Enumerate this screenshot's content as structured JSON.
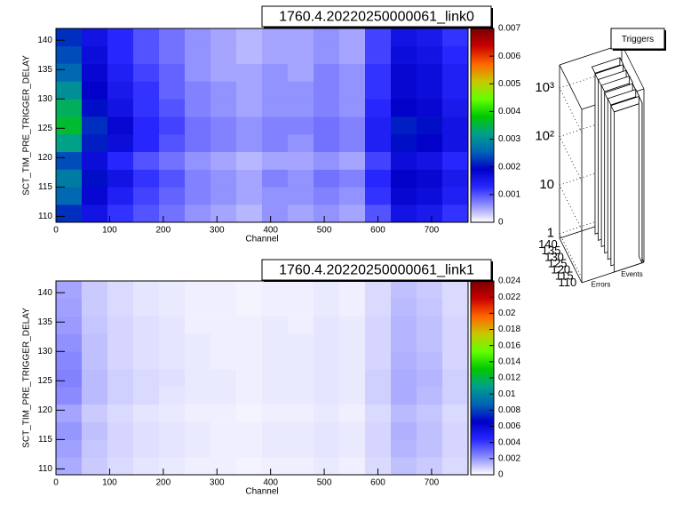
{
  "chart_data": [
    {
      "type": "heatmap",
      "title": "1760.4.20220250000061_link0",
      "xlabel": "Channel",
      "ylabel": "SCT_TIM_PRE_TRIGGER_DELAY",
      "xlim": [
        0,
        768
      ],
      "xticks": [
        0,
        100,
        200,
        300,
        400,
        500,
        600,
        700
      ],
      "ylim": [
        109,
        142
      ],
      "yticks": [
        110,
        115,
        120,
        125,
        130,
        135,
        140
      ],
      "xbins": [
        0,
        48,
        96,
        144,
        192,
        240,
        288,
        336,
        384,
        432,
        480,
        528,
        576,
        624,
        672,
        720,
        768
      ],
      "ybins": [
        109,
        112,
        115,
        118,
        121,
        124,
        127,
        130,
        133,
        136,
        139,
        142
      ],
      "zlim": [
        0,
        0.007
      ],
      "zticks": [
        0,
        0.001,
        0.002,
        0.003,
        0.004,
        0.005,
        0.006,
        0.007
      ],
      "palette": [
        "#ffffff",
        "#8c8cff",
        "#2828ff",
        "#0000c8",
        "#0064b4",
        "#00a08c",
        "#00c800",
        "#64ff00",
        "#c8c800",
        "#ff6400",
        "#c80000",
        "#780000"
      ],
      "z": [
        [
          0.0022,
          0.0016,
          0.0012,
          0.001,
          0.0008,
          0.0006,
          0.0005,
          0.0004,
          0.0006,
          0.0005,
          0.0006,
          0.0005,
          0.001,
          0.0016,
          0.0015,
          0.0012
        ],
        [
          0.0026,
          0.0018,
          0.0014,
          0.0011,
          0.0009,
          0.0007,
          0.0006,
          0.0005,
          0.0006,
          0.0006,
          0.0007,
          0.0006,
          0.0012,
          0.0018,
          0.0017,
          0.0014
        ],
        [
          0.0028,
          0.002,
          0.0016,
          0.0012,
          0.001,
          0.0007,
          0.0006,
          0.0005,
          0.0007,
          0.0006,
          0.0008,
          0.0007,
          0.0013,
          0.0019,
          0.0018,
          0.0015
        ],
        [
          0.0024,
          0.0017,
          0.0013,
          0.001,
          0.0008,
          0.0006,
          0.0005,
          0.0004,
          0.0005,
          0.0005,
          0.0006,
          0.0005,
          0.0011,
          0.0017,
          0.0016,
          0.0013
        ],
        [
          0.0032,
          0.0021,
          0.0017,
          0.0013,
          0.001,
          0.0008,
          0.0007,
          0.0006,
          0.0007,
          0.0006,
          0.0008,
          0.0007,
          0.0014,
          0.002,
          0.0019,
          0.0016
        ],
        [
          0.0036,
          0.0022,
          0.0018,
          0.0013,
          0.0011,
          0.0008,
          0.0007,
          0.0006,
          0.0007,
          0.0007,
          0.0008,
          0.0007,
          0.0014,
          0.0021,
          0.002,
          0.0016
        ],
        [
          0.0034,
          0.002,
          0.0016,
          0.0012,
          0.001,
          0.0007,
          0.0006,
          0.0005,
          0.0006,
          0.0006,
          0.0007,
          0.0006,
          0.0013,
          0.0019,
          0.0018,
          0.0015
        ],
        [
          0.003,
          0.0019,
          0.0015,
          0.0012,
          0.0009,
          0.0007,
          0.0006,
          0.0005,
          0.0006,
          0.0006,
          0.0007,
          0.0006,
          0.0012,
          0.0018,
          0.0017,
          0.0014
        ],
        [
          0.0026,
          0.0018,
          0.0014,
          0.0011,
          0.0009,
          0.0006,
          0.0005,
          0.0005,
          0.0006,
          0.0005,
          0.0007,
          0.0006,
          0.0012,
          0.0018,
          0.0017,
          0.0014
        ],
        [
          0.0024,
          0.0017,
          0.0013,
          0.001,
          0.0008,
          0.0006,
          0.0005,
          0.0004,
          0.0005,
          0.0005,
          0.0006,
          0.0005,
          0.0011,
          0.0017,
          0.0016,
          0.0013
        ],
        [
          0.0022,
          0.0016,
          0.0013,
          0.001,
          0.0008,
          0.0006,
          0.0005,
          0.0004,
          0.0005,
          0.0005,
          0.0006,
          0.0005,
          0.0011,
          0.0016,
          0.0015,
          0.0012
        ]
      ]
    },
    {
      "type": "heatmap",
      "title": "1760.4.20220250000061_link1",
      "xlabel": "Channel",
      "ylabel": "SCT_TIM_PRE_TRIGGER_DELAY",
      "xlim": [
        0,
        768
      ],
      "xticks": [
        0,
        100,
        200,
        300,
        400,
        500,
        600,
        700
      ],
      "ylim": [
        109,
        142
      ],
      "yticks": [
        110,
        115,
        120,
        125,
        130,
        135,
        140
      ],
      "xbins": [
        0,
        48,
        96,
        144,
        192,
        240,
        288,
        336,
        384,
        432,
        480,
        528,
        576,
        624,
        672,
        720,
        768
      ],
      "ybins": [
        109,
        112,
        115,
        118,
        121,
        124,
        127,
        130,
        133,
        136,
        139,
        142
      ],
      "zlim": [
        0,
        0.024
      ],
      "zticks": [
        0,
        0.002,
        0.004,
        0.006,
        0.008,
        0.01,
        0.012,
        0.014,
        0.016,
        0.018,
        0.02,
        0.022,
        0.024
      ],
      "palette": [
        "#ffffff",
        "#8c8cff",
        "#2828ff",
        "#0000c8",
        "#0064b4",
        "#00a08c",
        "#00c800",
        "#64ff00",
        "#c8c800",
        "#ff6400",
        "#c80000",
        "#780000"
      ],
      "z": [
        [
          0.0016,
          0.001,
          0.0007,
          0.0005,
          0.0004,
          0.0003,
          0.0003,
          0.0002,
          0.0003,
          0.0003,
          0.0004,
          0.0003,
          0.0007,
          0.0012,
          0.001,
          0.0007
        ],
        [
          0.0018,
          0.0011,
          0.0008,
          0.0006,
          0.0005,
          0.0004,
          0.0003,
          0.0003,
          0.0004,
          0.0004,
          0.0005,
          0.0004,
          0.0008,
          0.0014,
          0.0012,
          0.0008
        ],
        [
          0.002,
          0.0012,
          0.0008,
          0.0006,
          0.0005,
          0.0004,
          0.0003,
          0.0003,
          0.0004,
          0.0004,
          0.0005,
          0.0004,
          0.0008,
          0.0015,
          0.0012,
          0.0008
        ],
        [
          0.0017,
          0.001,
          0.0007,
          0.0005,
          0.0004,
          0.0003,
          0.0003,
          0.0002,
          0.0003,
          0.0003,
          0.0004,
          0.0003,
          0.0007,
          0.0013,
          0.0011,
          0.0007
        ],
        [
          0.0022,
          0.0013,
          0.0009,
          0.0007,
          0.0005,
          0.0004,
          0.0004,
          0.0003,
          0.0004,
          0.0004,
          0.0005,
          0.0004,
          0.0009,
          0.0016,
          0.0013,
          0.0009
        ],
        [
          0.0024,
          0.0013,
          0.0009,
          0.0007,
          0.0006,
          0.0004,
          0.0004,
          0.0003,
          0.0004,
          0.0004,
          0.0005,
          0.0004,
          0.0009,
          0.0016,
          0.0014,
          0.0009
        ],
        [
          0.0023,
          0.0012,
          0.0008,
          0.0006,
          0.0005,
          0.0004,
          0.0003,
          0.0003,
          0.0004,
          0.0004,
          0.0005,
          0.0004,
          0.0008,
          0.0015,
          0.0013,
          0.0008
        ],
        [
          0.0021,
          0.0012,
          0.0008,
          0.0006,
          0.0005,
          0.0004,
          0.0003,
          0.0003,
          0.0004,
          0.0004,
          0.0005,
          0.0004,
          0.0008,
          0.0014,
          0.0012,
          0.0008
        ],
        [
          0.0019,
          0.0011,
          0.0008,
          0.0006,
          0.0005,
          0.0003,
          0.0003,
          0.0003,
          0.0004,
          0.0003,
          0.0005,
          0.0004,
          0.0008,
          0.0014,
          0.0012,
          0.0008
        ],
        [
          0.0018,
          0.001,
          0.0007,
          0.0005,
          0.0004,
          0.0003,
          0.0003,
          0.0002,
          0.0003,
          0.0003,
          0.0004,
          0.0003,
          0.0007,
          0.0013,
          0.0011,
          0.0007
        ],
        [
          0.0017,
          0.001,
          0.0007,
          0.0005,
          0.0004,
          0.0003,
          0.0003,
          0.0002,
          0.0003,
          0.0003,
          0.0004,
          0.0003,
          0.0007,
          0.0012,
          0.001,
          0.0007
        ]
      ]
    },
    {
      "type": "lego",
      "title": "Triggers",
      "log": true,
      "categories": [
        "Errors",
        "Events"
      ],
      "delays": [
        110,
        115,
        120,
        125,
        130,
        135,
        140
      ],
      "zlim": [
        0.8,
        3000
      ],
      "zticks": [
        1,
        10,
        {
          "value": 100,
          "label": "10²"
        },
        {
          "value": 1000,
          "label": "10³"
        }
      ],
      "values": [
        [
          null,
          null,
          null,
          null,
          null,
          null,
          null
        ],
        [
          1600,
          1650,
          1600,
          1700,
          1650,
          1600,
          1650
        ]
      ]
    }
  ]
}
